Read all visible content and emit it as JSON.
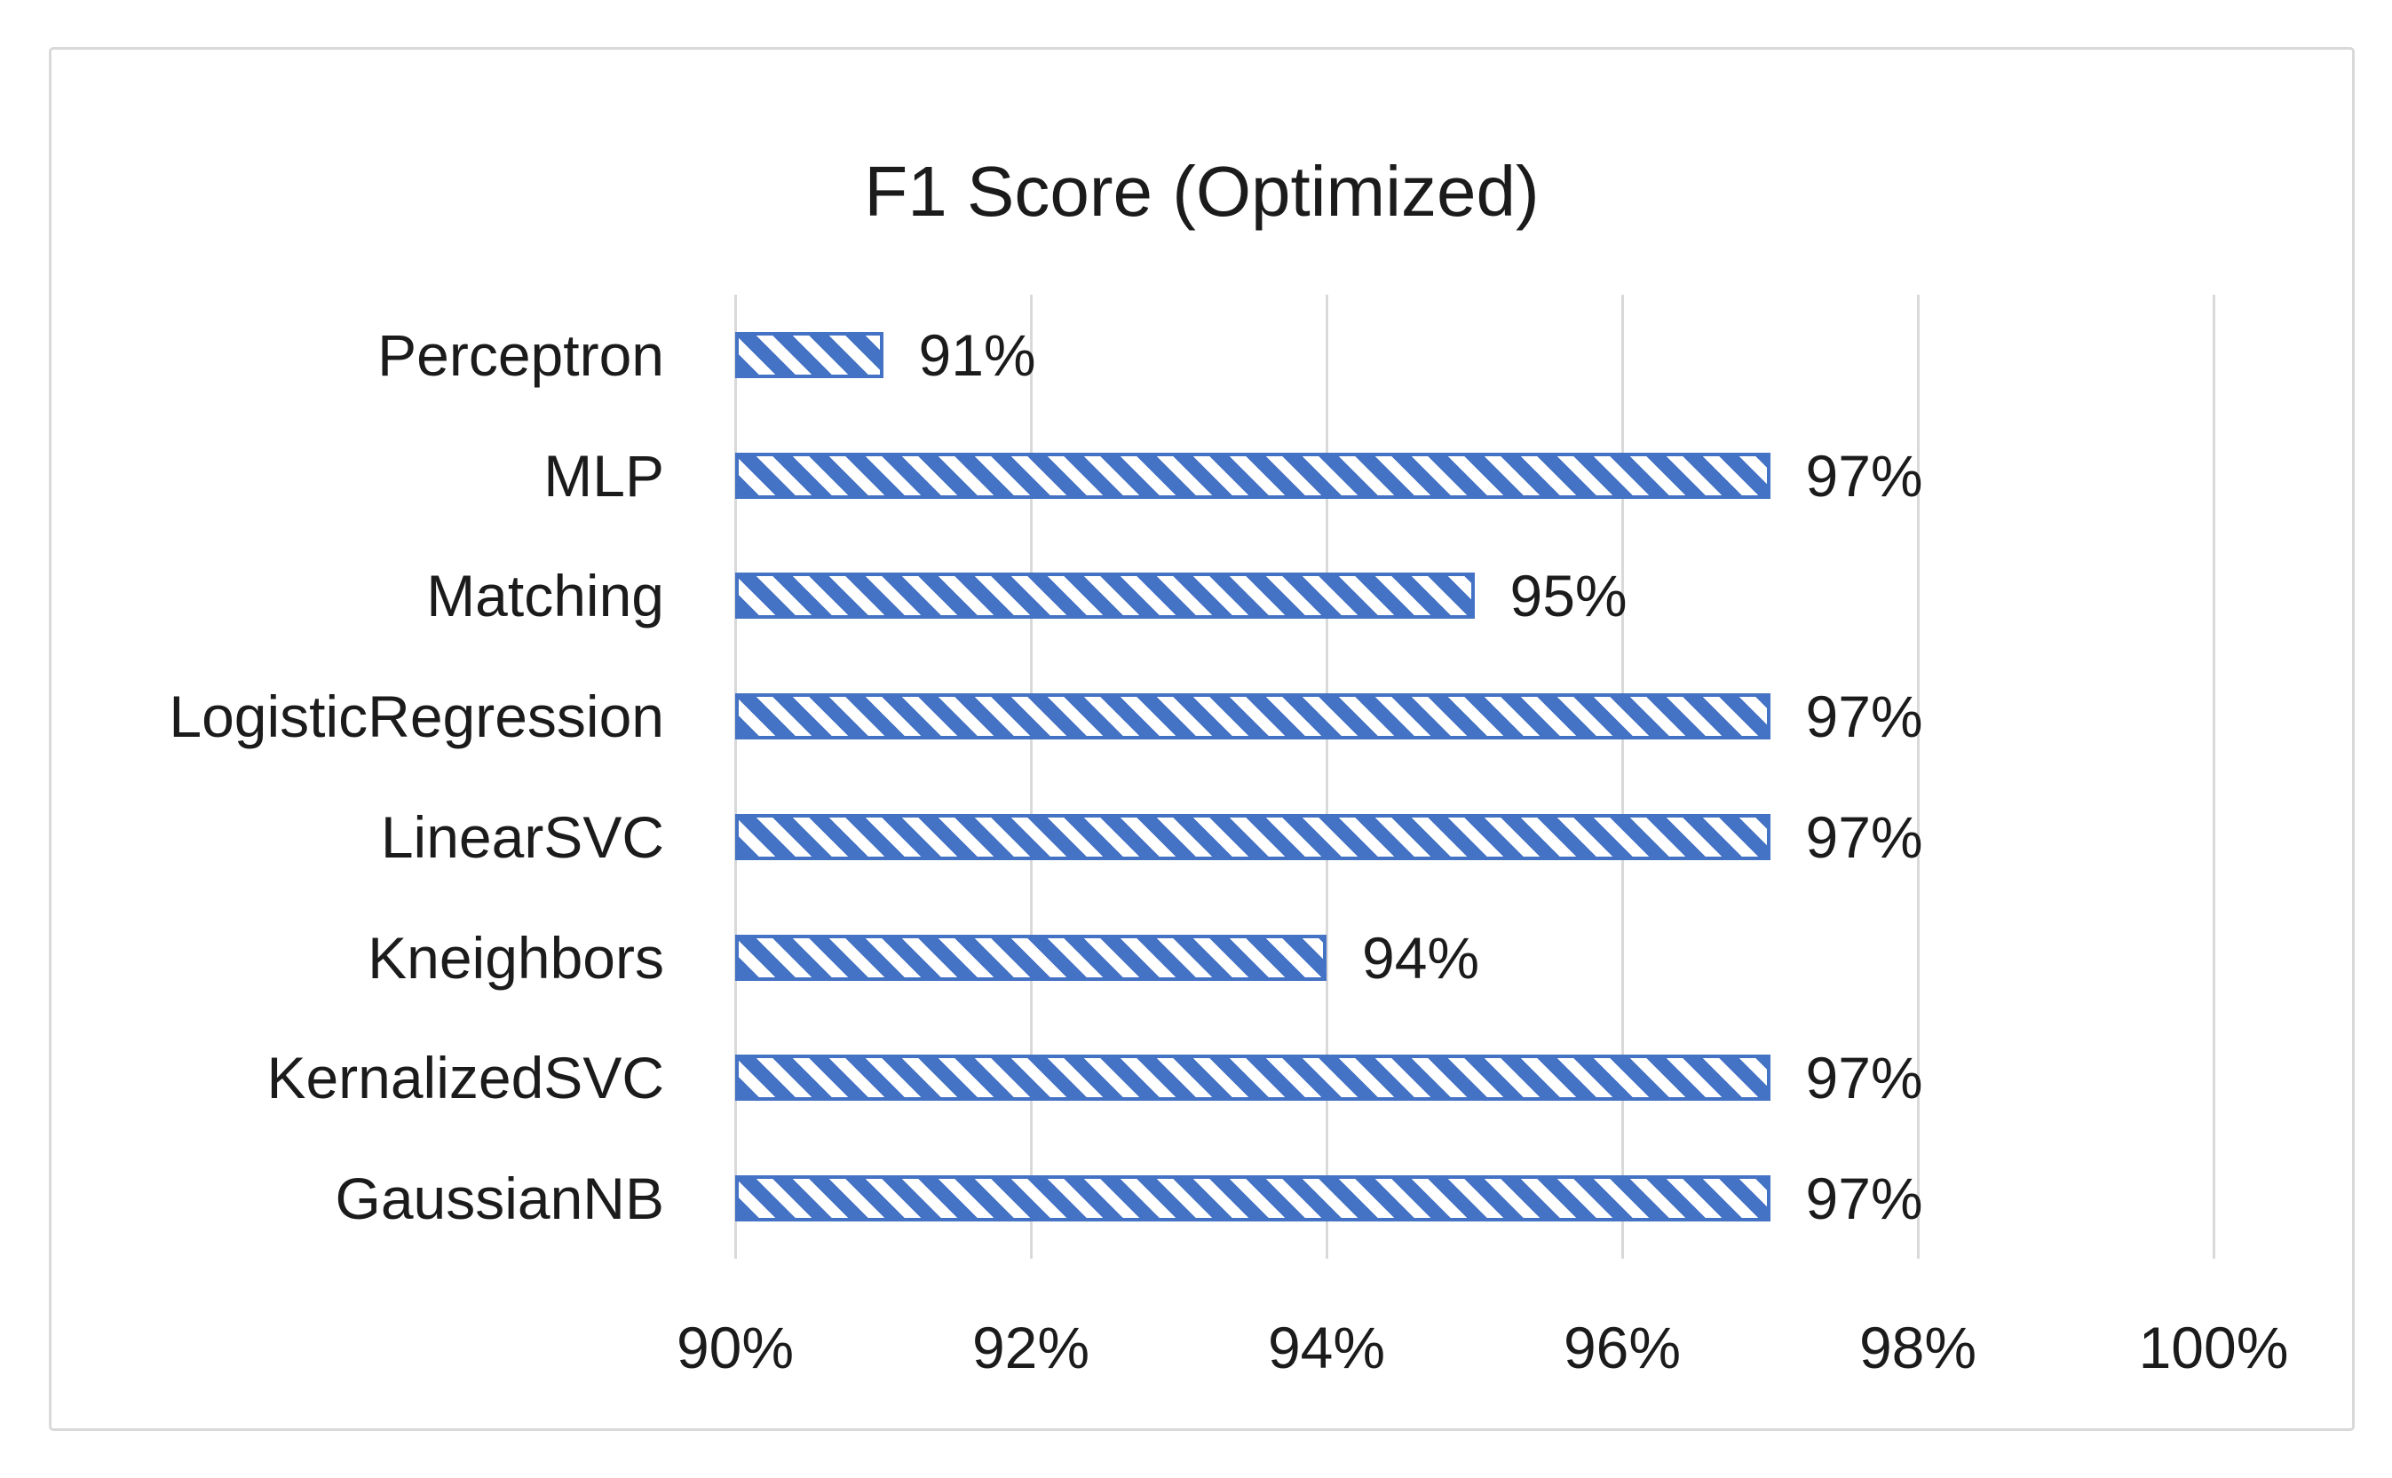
{
  "chart_data": {
    "type": "bar",
    "orientation": "horizontal",
    "title": "F1 Score (Optimized)",
    "categories": [
      "Perceptron",
      "MLP",
      "Matching",
      "LogisticRegression",
      "LinearSVC",
      "Kneighbors",
      "KernalizedSVC",
      "GaussianNB"
    ],
    "series": [
      {
        "name": "F1 Score",
        "values": [
          91,
          97,
          95,
          97,
          97,
          94,
          97,
          97
        ]
      }
    ],
    "value_labels": [
      "91%",
      "97%",
      "95%",
      "97%",
      "97%",
      "94%",
      "97%",
      "97%"
    ],
    "x_tick_labels": [
      "90%",
      "92%",
      "94%",
      "96%",
      "98%",
      "100%"
    ],
    "x_tick_values": [
      90,
      92,
      94,
      96,
      98,
      100
    ],
    "xlim": [
      90,
      100
    ],
    "grid": true,
    "legend_position": "none",
    "bar_fill_style": "diagonal-hatch",
    "colors": {
      "bar": "#4472C4",
      "bar_background": "#FFFFFF",
      "gridline": "#D9D9D9",
      "frame_border": "#D9D9D9",
      "text": "#1B1B1B"
    }
  }
}
